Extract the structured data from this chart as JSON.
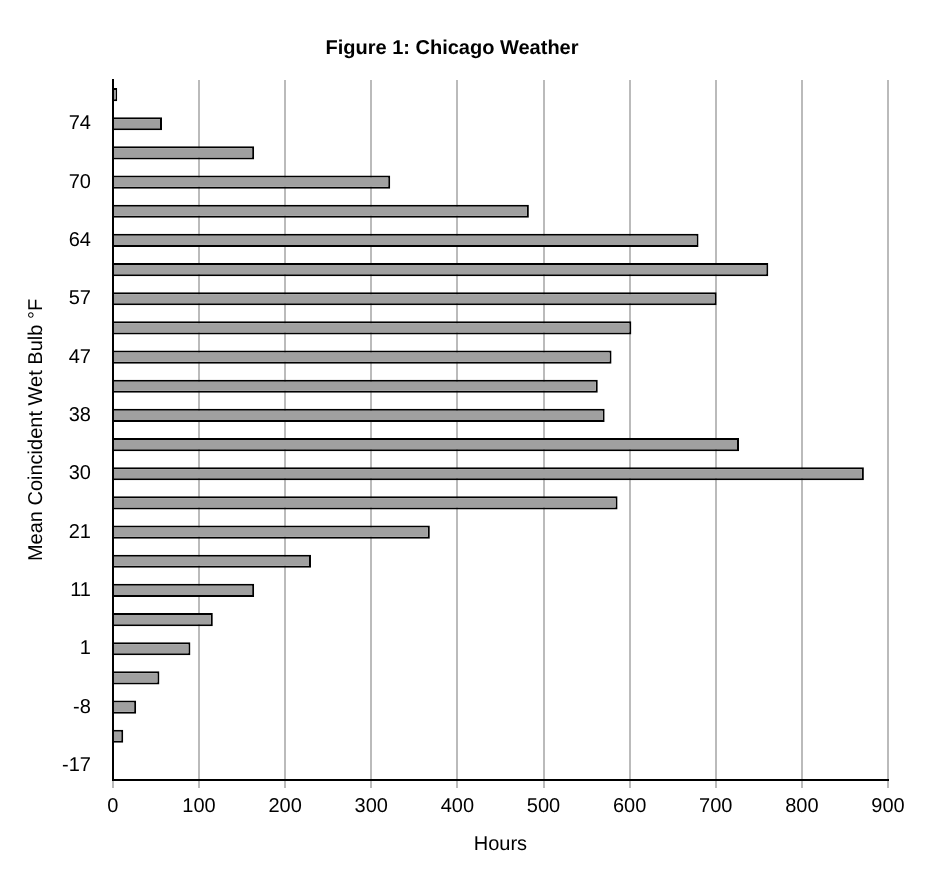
{
  "chart_data": {
    "type": "bar",
    "orientation": "horizontal",
    "title": "Figure 1: Chicago Weather",
    "xlabel": "Hours",
    "ylabel": "Mean Coincident Wet Bulb °F",
    "categories": [
      null,
      "74",
      null,
      "70",
      null,
      "64",
      null,
      "57",
      null,
      "47",
      null,
      "38",
      null,
      "30",
      null,
      "21",
      null,
      "11",
      null,
      "1",
      null,
      "-8",
      null,
      "-17"
    ],
    "values": [
      5,
      57,
      164,
      322,
      483,
      680,
      761,
      701,
      602,
      579,
      563,
      571,
      727,
      872,
      586,
      368,
      230,
      164,
      116,
      90,
      54,
      27,
      12,
      0
    ],
    "color": "#a0a0a0",
    "xlim": [
      0,
      900
    ],
    "xticks": [
      0,
      100,
      200,
      300,
      400,
      500,
      600,
      700,
      800,
      900
    ],
    "grid": "x",
    "legend": false
  }
}
